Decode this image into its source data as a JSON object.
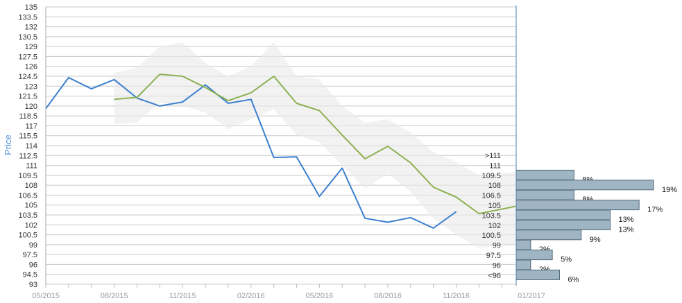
{
  "chart_data": {
    "type": "line",
    "ylabel": "Price",
    "ylim": [
      93,
      135
    ],
    "yticks": [
      93,
      94.5,
      96,
      97.5,
      99,
      100.5,
      102,
      103.5,
      105,
      106.5,
      108,
      109.5,
      111,
      112.5,
      114,
      115.5,
      117,
      118.5,
      120,
      121.5,
      123,
      124.5,
      126,
      127.5,
      129,
      130.5,
      132,
      133.5,
      135
    ],
    "xticks": [
      "05/2015",
      "08/2015",
      "11/2015",
      "02/2016",
      "05/2016",
      "08/2016",
      "11/2016",
      "01/2017"
    ],
    "xlim": [
      0,
      20.6
    ],
    "grid": true,
    "colors": {
      "actual": "#3a7fcf",
      "forecast": "#8db052",
      "band": "#e9e9e9",
      "bar_fill": "#9fb5c4",
      "bar_stroke": "#4f6878",
      "grid": "#c8c8c8"
    },
    "series": [
      {
        "key": "actual",
        "x": [
          0,
          1,
          2,
          3,
          4,
          5,
          6,
          7,
          8,
          9,
          10,
          11,
          12,
          13,
          14,
          15,
          16,
          17,
          18,
          19,
          20
        ],
        "values": [
          119.6,
          124.3,
          122.6,
          124.0,
          121.2,
          120.0,
          120.6,
          123.2,
          120.4,
          121.0,
          112.2,
          112.3,
          106.3,
          110.6,
          103.0,
          102.4,
          103.1,
          101.5,
          104.0,
          null,
          null
        ]
      },
      {
        "key": "forecast",
        "x": [
          3,
          4,
          5,
          6,
          7,
          8,
          9,
          10,
          11,
          12,
          13,
          14,
          15,
          16,
          17,
          18,
          19,
          20.6
        ],
        "values": [
          121.0,
          121.3,
          124.8,
          124.5,
          122.8,
          120.8,
          122.0,
          124.5,
          120.4,
          119.3,
          115.6,
          112.0,
          113.9,
          111.4,
          107.7,
          106.2,
          103.7,
          104.8
        ]
      }
    ],
    "band": {
      "x": [
        3,
        4,
        5,
        6,
        7,
        8,
        9,
        10,
        11,
        12,
        13,
        14,
        15,
        16,
        17,
        18,
        19,
        20.6
      ],
      "upper": [
        125.0,
        125.8,
        129.0,
        129.6,
        126.5,
        124.5,
        126.0,
        129.6,
        124.5,
        124.0,
        120.0,
        117.5,
        118.0,
        116.0,
        113.0,
        111.5,
        109.5,
        110.0
      ],
      "lower": [
        117.3,
        117.5,
        120.5,
        120.0,
        119.0,
        116.5,
        118.0,
        119.5,
        115.6,
        114.5,
        111.0,
        107.5,
        109.8,
        107.0,
        103.0,
        100.5,
        98.5,
        99.2
      ]
    },
    "distribution": {
      "bins": [
        {
          "label": ">111",
          "value": 0,
          "percent": ""
        },
        {
          "label": "111",
          "value": 8,
          "percent": "8%"
        },
        {
          "label": "109.5",
          "value": 19,
          "percent": "19%"
        },
        {
          "label": "108",
          "value": 8,
          "percent": "8%"
        },
        {
          "label": "106.5",
          "value": 17,
          "percent": "17%"
        },
        {
          "label": "105",
          "value": 13,
          "percent": "13%"
        },
        {
          "label": "103.5",
          "value": 13,
          "percent": "13%"
        },
        {
          "label": "102",
          "value": 9,
          "percent": "9%"
        },
        {
          "label": "100.5",
          "value": 2,
          "percent": "2%"
        },
        {
          "label": "99",
          "value": 5,
          "percent": "5%"
        },
        {
          "label": "97.5",
          "value": 2,
          "percent": "2%"
        },
        {
          "label": "96",
          "value": 6,
          "percent": "6%"
        },
        {
          "label": "<96",
          "value": 0,
          "percent": ""
        }
      ],
      "max_value": 19
    }
  }
}
